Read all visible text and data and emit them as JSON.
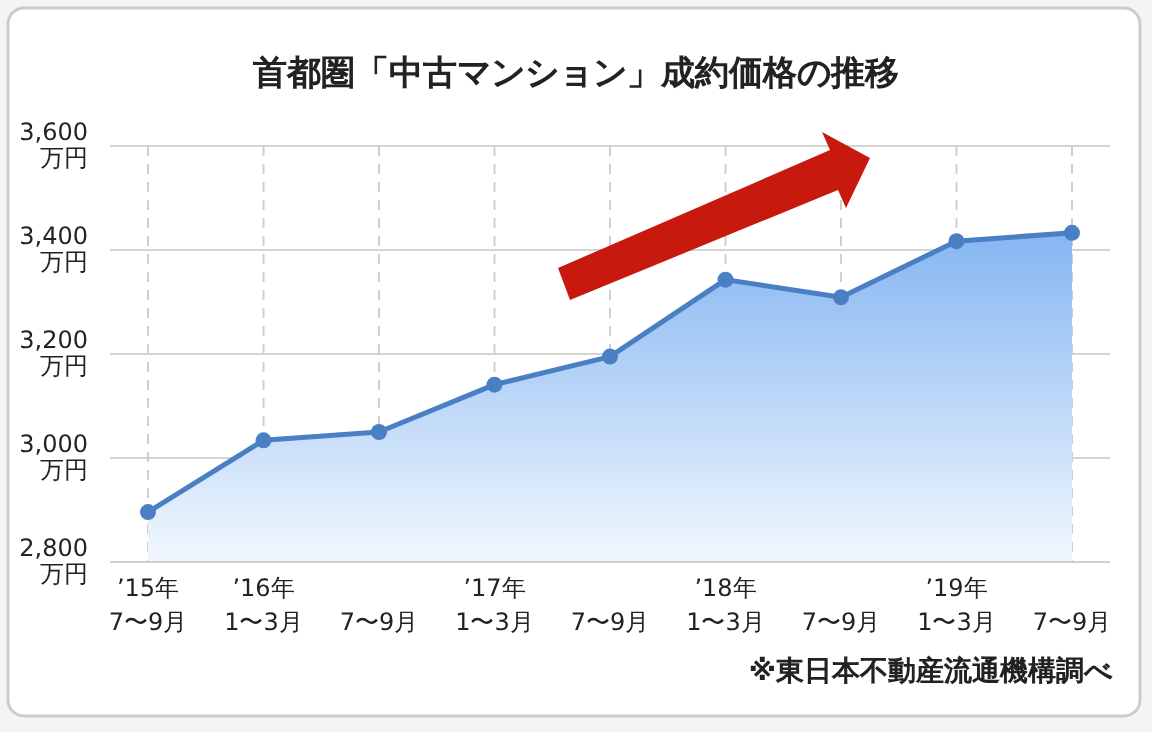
{
  "chart_data": {
    "type": "area",
    "title": "首都圏「中古マンション」成約価格の推移",
    "categories": [
      "’15年\n7〜9月",
      "’16年\n1〜3月",
      "7〜9月",
      "’17年\n1〜3月",
      "7〜9月",
      "’18年\n1〜3月",
      "7〜9月",
      "’19年\n1〜3月",
      "7〜9月"
    ],
    "series": [
      {
        "color": "#4a7fc4",
        "values": [
          2896,
          3034,
          3050,
          3141,
          3195,
          3343,
          3309,
          3417,
          3433
        ]
      }
    ],
    "ylim": [
      2800,
      3600
    ],
    "yticks": [
      {
        "value": 2800,
        "label": "2,800\n万円"
      },
      {
        "value": 3000,
        "label": "3,000\n万円"
      },
      {
        "value": 3200,
        "label": "3,200\n万円"
      },
      {
        "value": 3400,
        "label": "3,400\n万円"
      },
      {
        "value": 3600,
        "label": "3,600\n万円"
      }
    ],
    "grid": true,
    "marker": "circle",
    "annotations": [
      "※東日本不動産流通機構調べ"
    ]
  }
}
